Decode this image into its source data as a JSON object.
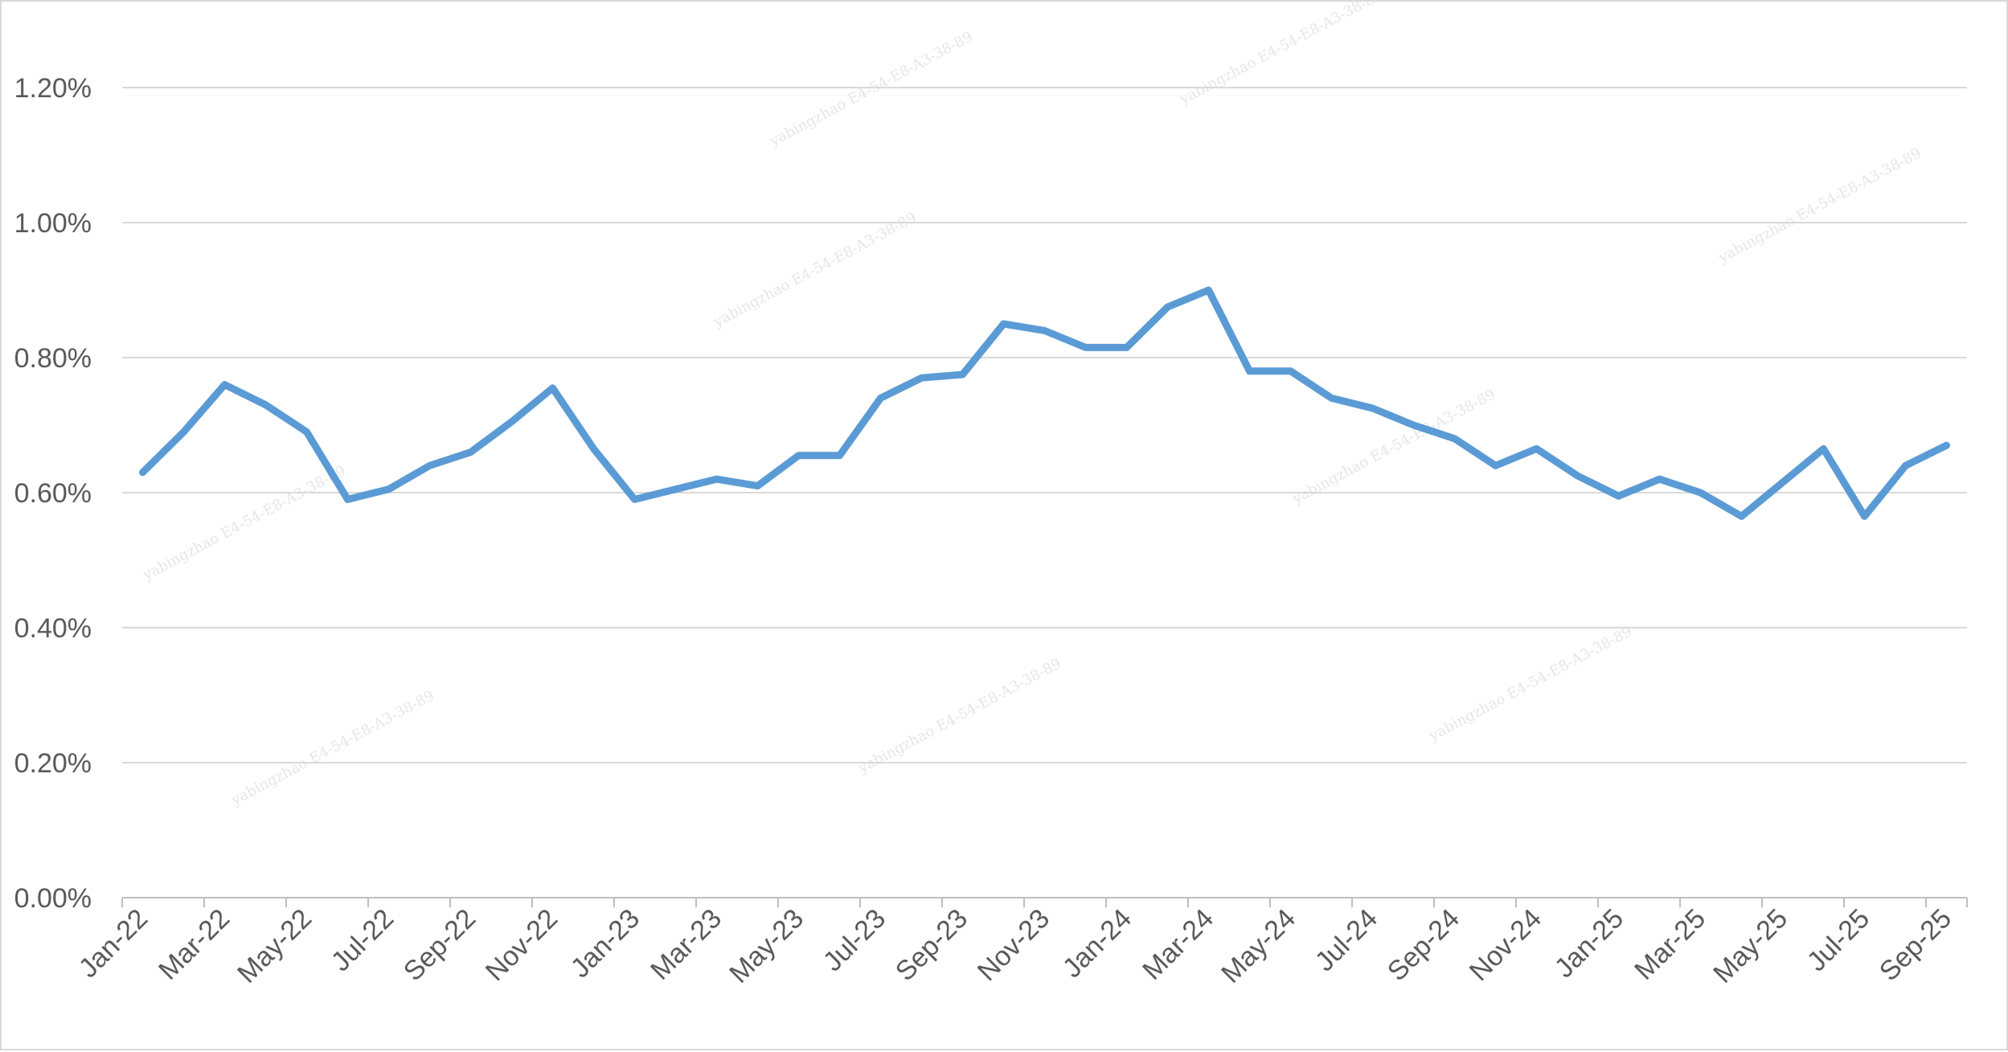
{
  "chart_data": {
    "type": "line",
    "title": "",
    "xlabel": "",
    "ylabel": "",
    "x": [
      "Jan-22",
      "Feb-22",
      "Mar-22",
      "Apr-22",
      "May-22",
      "Jun-22",
      "Jul-22",
      "Aug-22",
      "Sep-22",
      "Oct-22",
      "Nov-22",
      "Dec-22",
      "Jan-23",
      "Feb-23",
      "Mar-23",
      "Apr-23",
      "May-23",
      "Jun-23",
      "Jul-23",
      "Aug-23",
      "Sep-23",
      "Oct-23",
      "Nov-23",
      "Dec-23",
      "Jan-24",
      "Feb-24",
      "Mar-24",
      "Apr-24",
      "May-24",
      "Jun-24",
      "Jul-24",
      "Aug-24",
      "Sep-24",
      "Oct-24",
      "Nov-24",
      "Dec-24",
      "Jan-25",
      "Feb-25",
      "Mar-25",
      "Apr-25",
      "May-25",
      "Jun-25",
      "Jul-25",
      "Aug-25",
      "Sep-25"
    ],
    "x_tick_labels": [
      "Jan-22",
      "Mar-22",
      "May-22",
      "Jul-22",
      "Sep-22",
      "Nov-22",
      "Jan-23",
      "Mar-23",
      "May-23",
      "Jul-23",
      "Sep-23",
      "Nov-23",
      "Jan-24",
      "Mar-24",
      "May-24",
      "Jul-24",
      "Sep-24",
      "Nov-24",
      "Jan-25",
      "Mar-25",
      "May-25",
      "Jul-25",
      "Sep-25"
    ],
    "y_tick_labels": [
      "0.00%",
      "0.20%",
      "0.40%",
      "0.60%",
      "0.80%",
      "1.00%",
      "1.20%"
    ],
    "y_ticks": [
      0,
      0.2,
      0.4,
      0.6,
      0.8,
      1.0,
      1.2
    ],
    "ylim": [
      0,
      1.2
    ],
    "y_unit": "%",
    "grid": true,
    "legend": "none",
    "series": [
      {
        "color": "#5b9bd5",
        "values": [
          0.63,
          0.69,
          0.76,
          0.73,
          0.69,
          0.59,
          0.605,
          0.64,
          0.66,
          0.705,
          0.755,
          0.665,
          0.59,
          0.605,
          0.62,
          0.61,
          0.655,
          0.655,
          0.74,
          0.77,
          0.775,
          0.85,
          0.84,
          0.815,
          0.815,
          0.875,
          0.9,
          0.78,
          0.78,
          0.74,
          0.725,
          0.7,
          0.68,
          0.64,
          0.665,
          0.625,
          0.595,
          0.62,
          0.6,
          0.565,
          0.615,
          0.665,
          0.565,
          0.64,
          0.67
        ]
      }
    ]
  },
  "watermark": {
    "text": "yabingzhao  E4-54-E8-A3-38-89",
    "color": "#e6e6e6"
  }
}
